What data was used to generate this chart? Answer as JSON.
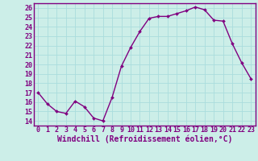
{
  "x": [
    0,
    1,
    2,
    3,
    4,
    5,
    6,
    7,
    8,
    9,
    10,
    11,
    12,
    13,
    14,
    15,
    16,
    17,
    18,
    19,
    20,
    21,
    22,
    23
  ],
  "y": [
    17,
    15.8,
    15.0,
    14.8,
    16.1,
    15.5,
    14.3,
    14.0,
    16.5,
    19.8,
    21.8,
    23.5,
    24.9,
    25.1,
    25.1,
    25.4,
    25.7,
    26.1,
    25.8,
    24.7,
    24.6,
    22.2,
    20.2,
    18.5
  ],
  "line_color": "#800080",
  "marker_color": "#800080",
  "bg_color": "#cceee8",
  "grid_color": "#aadddd",
  "border_color": "#800080",
  "xlabel": "Windchill (Refroidissement éolien,°C)",
  "xlim": [
    -0.5,
    23.5
  ],
  "ylim": [
    13.5,
    26.5
  ],
  "yticks": [
    14,
    15,
    16,
    17,
    18,
    19,
    20,
    21,
    22,
    23,
    24,
    25,
    26
  ],
  "xticks": [
    0,
    1,
    2,
    3,
    4,
    5,
    6,
    7,
    8,
    9,
    10,
    11,
    12,
    13,
    14,
    15,
    16,
    17,
    18,
    19,
    20,
    21,
    22,
    23
  ],
  "tick_fontsize": 6.0,
  "xlabel_fontsize": 7.0,
  "line_width": 1.0,
  "marker_size": 2.0
}
